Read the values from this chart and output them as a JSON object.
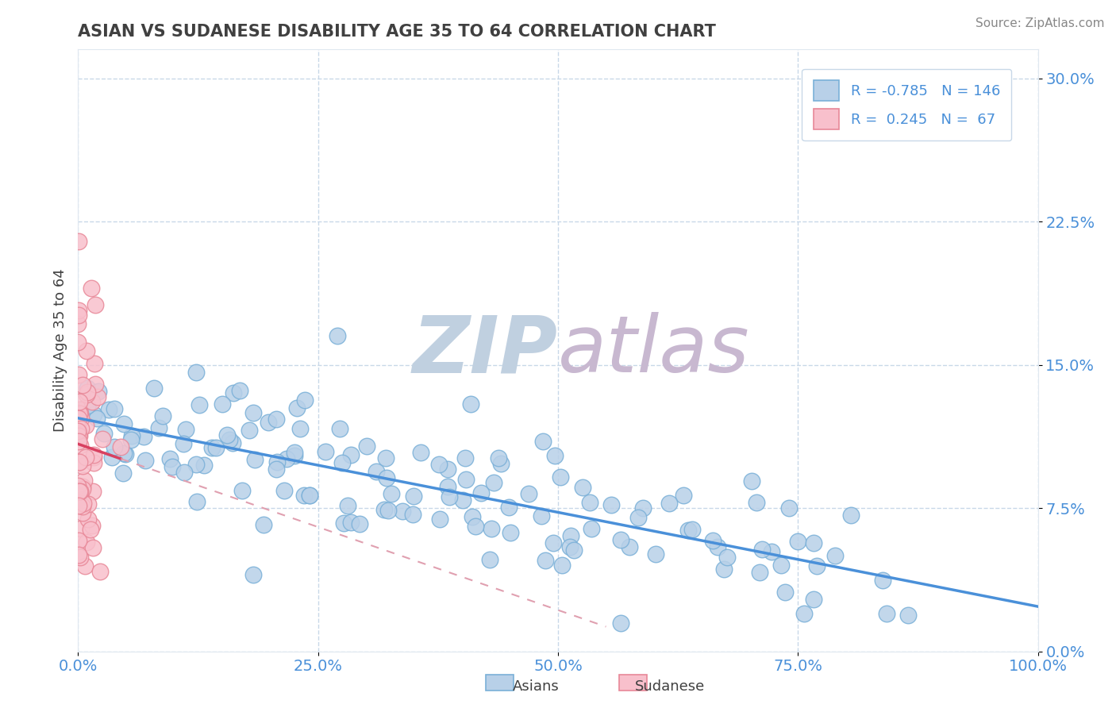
{
  "title": "ASIAN VS SUDANESE DISABILITY AGE 35 TO 64 CORRELATION CHART",
  "source_text": "Source: ZipAtlas.com",
  "ylabel": "Disability Age 35 to 64",
  "xlim": [
    0,
    1.0
  ],
  "ylim": [
    0,
    0.315
  ],
  "xticks": [
    0.0,
    0.25,
    0.5,
    0.75,
    1.0
  ],
  "xtick_labels": [
    "0.0%",
    "25.0%",
    "50.0%",
    "75.0%",
    "100.0%"
  ],
  "yticks": [
    0.0,
    0.075,
    0.15,
    0.225,
    0.3
  ],
  "ytick_labels": [
    "0.0%",
    "7.5%",
    "15.0%",
    "22.5%",
    "30.0%"
  ],
  "asian_R": -0.785,
  "asian_N": 146,
  "sudanese_R": 0.245,
  "sudanese_N": 67,
  "asian_color": "#b8d0e8",
  "asian_edge_color": "#7ab0d8",
  "sudanese_color": "#f8c0cc",
  "sudanese_edge_color": "#e88898",
  "asian_trend_color": "#4a90d9",
  "sudanese_trend_color": "#d84060",
  "sudanese_dashed_color": "#e0a0b0",
  "watermark_ZIP_color": "#c0d0e0",
  "watermark_atlas_color": "#c8b8d0",
  "background_color": "#ffffff",
  "grid_color": "#c8d8e8",
  "title_color": "#404040",
  "axis_label_color": "#404040",
  "tick_label_color": "#4a90d9",
  "legend_R_color": "#4a90d9",
  "source_color": "#888888"
}
